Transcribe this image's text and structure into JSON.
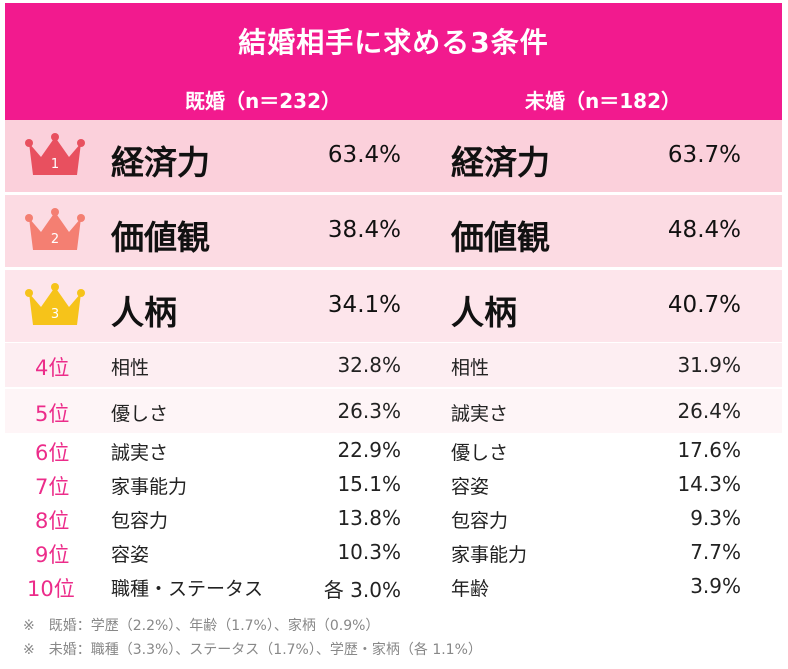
{
  "chart_data": {
    "type": "table",
    "title": "結婚相手に求める3条件",
    "columns": [
      {
        "label": "既婚（n＝232）"
      },
      {
        "label": "未婚（n＝182）"
      }
    ],
    "rows": [
      {
        "rank": "1",
        "married_item": "経済力",
        "married_pct": "63.4%",
        "unmarried_item": "経済力",
        "unmarried_pct": "63.7%"
      },
      {
        "rank": "2",
        "married_item": "価値観",
        "married_pct": "38.4%",
        "unmarried_item": "価値観",
        "unmarried_pct": "48.4%"
      },
      {
        "rank": "3",
        "married_item": "人柄",
        "married_pct": "34.1%",
        "unmarried_item": "人柄",
        "unmarried_pct": "40.7%"
      },
      {
        "rank": "4位",
        "married_item": "相性",
        "married_pct": "32.8%",
        "unmarried_item": "相性",
        "unmarried_pct": "31.9%"
      },
      {
        "rank": "5位",
        "married_item": "優しさ",
        "married_pct": "26.3%",
        "unmarried_item": "誠実さ",
        "unmarried_pct": "26.4%"
      },
      {
        "rank": "6位",
        "married_item": "誠実さ",
        "married_pct": "22.9%",
        "unmarried_item": "優しさ",
        "unmarried_pct": "17.6%"
      },
      {
        "rank": "7位",
        "married_item": "家事能力",
        "married_pct": "15.1%",
        "unmarried_item": "容姿",
        "unmarried_pct": "14.3%"
      },
      {
        "rank": "8位",
        "married_item": "包容力",
        "married_pct": "13.8%",
        "unmarried_item": "包容力",
        "unmarried_pct": "9.3%"
      },
      {
        "rank": "9位",
        "married_item": "容姿",
        "married_pct": "10.3%",
        "unmarried_item": "家事能力",
        "unmarried_pct": "7.7%"
      },
      {
        "rank": "10位",
        "married_item": "職種・ステータス",
        "married_pct": "各 3.0%",
        "unmarried_item": "年齢",
        "unmarried_pct": "3.9%"
      }
    ],
    "footnotes": [
      "※　既婚：学歴（2.2%）、年齢（1.7%）、家柄（0.9%）",
      "※　未婚：職種（3.3%）、ステータス（1.7%）、学歴・家柄（各 1.1%）"
    ]
  },
  "colors": {
    "header": "#f21a8e",
    "rank_text": "#ec2c8a",
    "crown_gold_1": "#e8505f",
    "crown_2": "#f47f72",
    "crown_3": "#f6c31a",
    "row1_bg": "#fbd0db",
    "row2_bg": "#fcdbe3",
    "row3_bg": "#fde5eb",
    "row4_bg": "#fdeef2",
    "row5_bg": "#fef5f7"
  },
  "icons": [
    "crown-icon-1",
    "crown-icon-2",
    "crown-icon-3"
  ]
}
